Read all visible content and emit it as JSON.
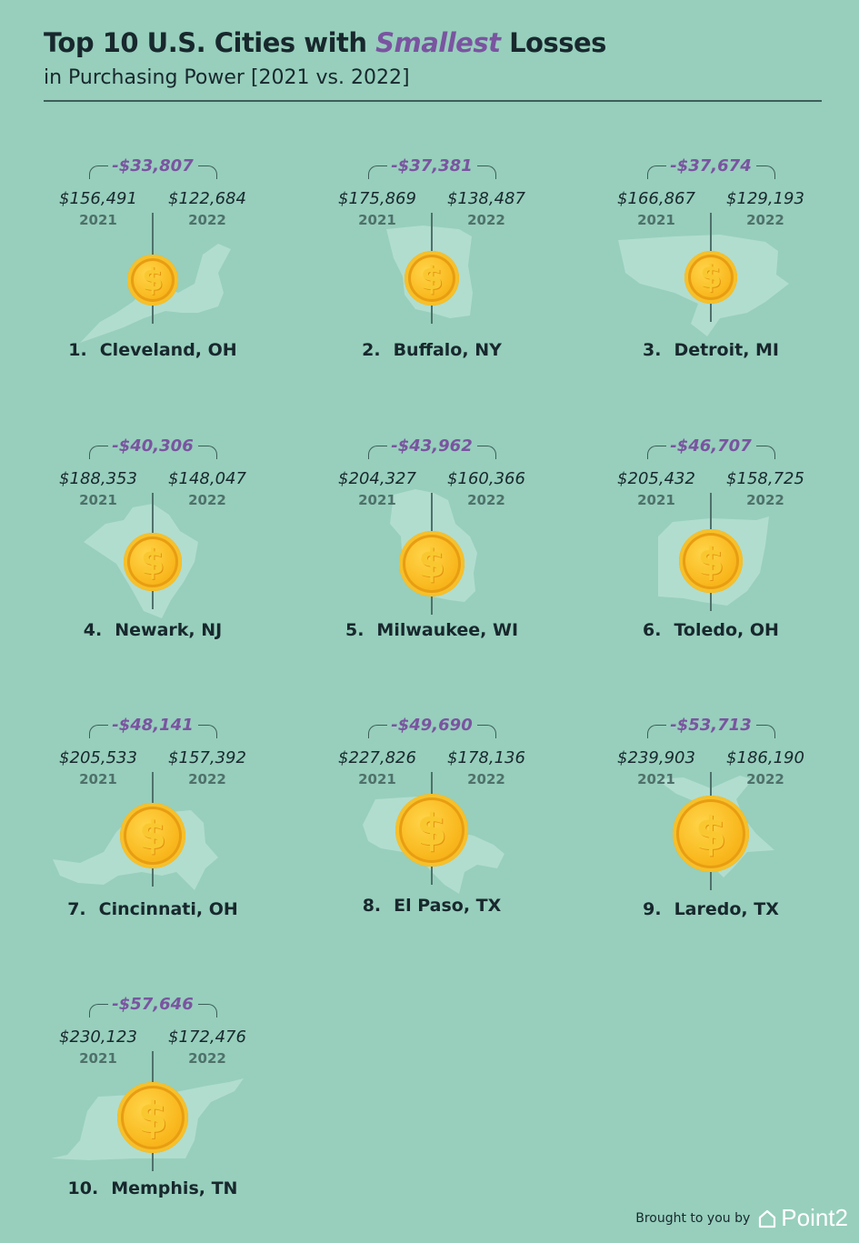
{
  "header": {
    "title_pre": "Top 10 U.S. Cities with ",
    "title_highlight": "Smallest",
    "title_post": " Losses",
    "subtitle": "in Purchasing Power [2021 vs. 2022]"
  },
  "footer": {
    "brought_by": "Brought to you by",
    "brand": "Point2",
    "brand_icon": "house-icon"
  },
  "colors": {
    "background": "#97cfbc",
    "accent": "#7a54a0",
    "coin": "#f9b81e",
    "map_shape": "#b8e0d3"
  },
  "chart_data": {
    "type": "table",
    "title": "Top 10 U.S. Cities with Smallest Losses",
    "subtitle": "in Purchasing Power [2021 vs. 2022]",
    "years": [
      "2021",
      "2022"
    ],
    "rows": [
      {
        "rank": "1.",
        "city": "Cleveland, OH",
        "value_2021": "$156,491",
        "value_2022": "$122,684",
        "difference": "-$33,807",
        "v2021": 156491,
        "v2022": 122684
      },
      {
        "rank": "2.",
        "city": "Buffalo, NY",
        "value_2021": "$175,869",
        "value_2022": "$138,487",
        "difference": "-$37,381",
        "v2021": 175869,
        "v2022": 138487
      },
      {
        "rank": "3.",
        "city": "Detroit, MI",
        "value_2021": "$166,867",
        "value_2022": "$129,193",
        "difference": "-$37,674",
        "v2021": 166867,
        "v2022": 129193
      },
      {
        "rank": "4.",
        "city": "Newark, NJ",
        "value_2021": "$188,353",
        "value_2022": "$148,047",
        "difference": "-$40,306",
        "v2021": 188353,
        "v2022": 148047
      },
      {
        "rank": "5.",
        "city": "Milwaukee, WI",
        "value_2021": "$204,327",
        "value_2022": "$160,366",
        "difference": "-$43,962",
        "v2021": 204327,
        "v2022": 160366
      },
      {
        "rank": "6.",
        "city": "Toledo, OH",
        "value_2021": "$205,432",
        "value_2022": "$158,725",
        "difference": "-$46,707",
        "v2021": 205432,
        "v2022": 158725
      },
      {
        "rank": "7.",
        "city": "Cincinnati, OH",
        "value_2021": "$205,533",
        "value_2022": "$157,392",
        "difference": "-$48,141",
        "v2021": 205533,
        "v2022": 157392
      },
      {
        "rank": "8.",
        "city": "El Paso, TX",
        "value_2021": "$227,826",
        "value_2022": "$178,136",
        "difference": "-$49,690",
        "v2021": 227826,
        "v2022": 178136
      },
      {
        "rank": "9.",
        "city": "Laredo, TX",
        "value_2021": "$239,903",
        "value_2022": "$186,190",
        "difference": "-$53,713",
        "v2021": 239903,
        "v2022": 186190
      },
      {
        "rank": "10.",
        "city": "Memphis, TN",
        "value_2021": "$230,123",
        "value_2022": "$172,476",
        "difference": "-$57,646",
        "v2021": 230123,
        "v2022": 172476
      }
    ]
  }
}
